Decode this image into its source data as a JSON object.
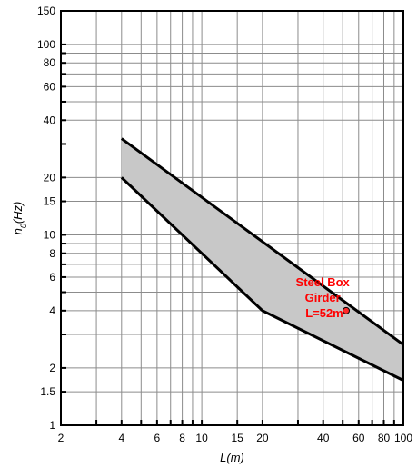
{
  "chart_data": {
    "type": "area",
    "title": "",
    "xlabel": "L(m)",
    "ylabel": "n0(Hz)",
    "ylabel_main": "n",
    "ylabel_sub": "0",
    "ylabel_rest": "(Hz)",
    "x_scale": "log",
    "y_scale": "log",
    "xlim": [
      2,
      100
    ],
    "ylim": [
      1,
      150
    ],
    "x_tick_labels": [
      "2",
      "4",
      "6",
      "8",
      "10",
      "15",
      "20",
      "40",
      "60",
      "80",
      "100"
    ],
    "x_tick_values": [
      2,
      4,
      6,
      8,
      10,
      15,
      20,
      40,
      60,
      80,
      100
    ],
    "y_tick_labels": [
      "1",
      "1.5",
      "2",
      "4",
      "6",
      "8",
      "10",
      "15",
      "20",
      "40",
      "60",
      "80",
      "100",
      "150"
    ],
    "y_tick_values": [
      1,
      1.5,
      2,
      4,
      6,
      8,
      10,
      15,
      20,
      40,
      60,
      80,
      100,
      150
    ],
    "x_grid": [
      2,
      3,
      4,
      5,
      6,
      7,
      8,
      9,
      10,
      15,
      20,
      30,
      40,
      50,
      60,
      70,
      80,
      90,
      100
    ],
    "y_grid": [
      1,
      1.5,
      2,
      3,
      4,
      5,
      6,
      7,
      8,
      9,
      10,
      15,
      20,
      30,
      40,
      50,
      60,
      70,
      80,
      90,
      100,
      150
    ],
    "grid": true,
    "series": [
      {
        "name": "",
        "x": [
          4,
          100
        ],
        "y": [
          32,
          2.65
        ]
      },
      {
        "name": "",
        "x": [
          4,
          20,
          100
        ],
        "y": [
          20,
          4,
          1.72
        ]
      }
    ],
    "point": {
      "x": 52,
      "y": 4
    },
    "annotation_lines": [
      "Steel Box",
      "Girder",
      "L=52m"
    ],
    "colors": {
      "band": "#c8c8c8",
      "grid": "#8c8c8c",
      "point": "#ff2a2a",
      "annotation": "#ff0000"
    }
  }
}
